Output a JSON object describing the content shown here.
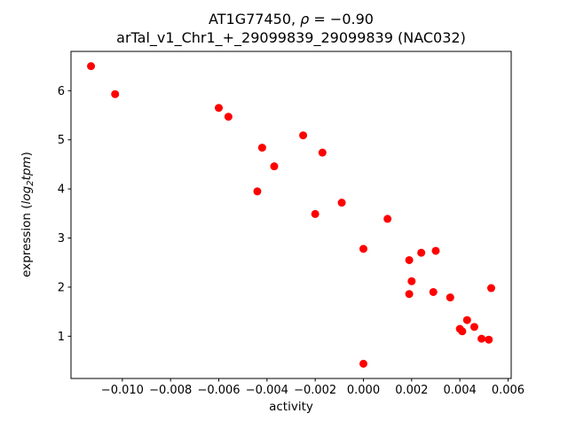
{
  "figure": {
    "title_line1": {
      "prefix": "AT1G77450, ",
      "rho": "ρ",
      "rest": " = −0.90"
    },
    "title_line2": "arTal_v1_Chr1_+_29099839_29099839 (NAC032)",
    "xlabel": "activity",
    "ylabel": {
      "prefix": "expression (",
      "log": "log",
      "sub": "2",
      "word": "tpm",
      "suffix": ")"
    }
  },
  "chart_data": {
    "type": "scatter",
    "title": "AT1G77450, ρ = −0.90\narTal_v1_Chr1_+_29099839_29099839 (NAC032)",
    "xlabel": "activity",
    "ylabel": "expression (log2 tpm)",
    "legend": "none",
    "grid": false,
    "marker_color": "#ff0000",
    "marker_radius": 4.5,
    "xlim": [
      -0.01213,
      0.00613
    ],
    "ylim": [
      0.14,
      6.8
    ],
    "x_ticks": [
      -0.01,
      -0.008,
      -0.006,
      -0.004,
      -0.002,
      0.0,
      0.002,
      0.004,
      0.006
    ],
    "x_tick_labels": [
      "−0.010",
      "−0.008",
      "−0.006",
      "−0.004",
      "−0.002",
      "0.000",
      "0.002",
      "0.004",
      "0.006"
    ],
    "y_ticks": [
      1,
      2,
      3,
      4,
      5,
      6
    ],
    "y_tick_labels": [
      "1",
      "2",
      "3",
      "4",
      "5",
      "6"
    ],
    "points": [
      [
        -0.0113,
        6.5
      ],
      [
        -0.0103,
        5.93
      ],
      [
        -0.006,
        5.65
      ],
      [
        -0.0056,
        5.47
      ],
      [
        -0.0042,
        4.84
      ],
      [
        -0.0037,
        4.46
      ],
      [
        -0.0044,
        3.95
      ],
      [
        -0.0025,
        5.09
      ],
      [
        -0.0017,
        4.74
      ],
      [
        -0.002,
        3.49
      ],
      [
        -0.0009,
        3.72
      ],
      [
        0.0,
        2.78
      ],
      [
        0.001,
        3.39
      ],
      [
        0.0019,
        2.55
      ],
      [
        0.002,
        2.12
      ],
      [
        0.0019,
        1.86
      ],
      [
        0.0024,
        2.7
      ],
      [
        0.003,
        2.74
      ],
      [
        0.0029,
        1.9
      ],
      [
        0.0036,
        1.79
      ],
      [
        0.004,
        1.15
      ],
      [
        0.0041,
        1.1
      ],
      [
        0.0043,
        1.33
      ],
      [
        0.0046,
        1.19
      ],
      [
        0.0049,
        0.95
      ],
      [
        0.0052,
        0.93
      ],
      [
        0.0053,
        1.98
      ],
      [
        0.0,
        0.44
      ]
    ]
  }
}
